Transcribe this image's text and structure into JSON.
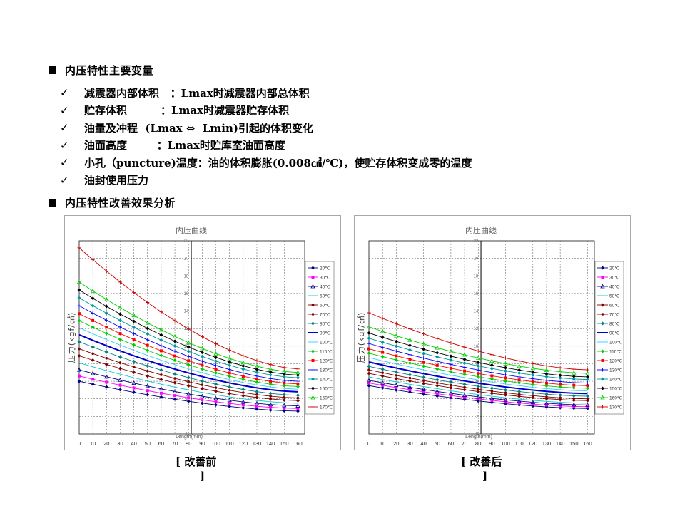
{
  "headings": {
    "main_vars": "内压特性主要变量",
    "effect_analysis": "内压特性改善效果分析"
  },
  "bullets": [
    "减震器内部体积   ：Lmax时减震器内部总体积",
    "贮存体积         ：Lmax时减震器贮存体积",
    "油量及冲程  (Lmax ⇔  Lmin)引起的体积变化",
    "油面高度        ：Lmax时贮库室油面高度",
    "小孔（puncture)温度：油的体积膨胀(0.008㎤/℃)，使贮存体积变成零的温度",
    "油封使用压力"
  ],
  "check_symbol": "✓",
  "captions": {
    "before_line1": "[ 改善前",
    "before_line2": "]",
    "after_line1": "[ 改善后",
    "after_line2": "]"
  },
  "chart_data": [
    {
      "type": "line",
      "title": "内压曲线",
      "xlabel": "Length(mm)",
      "ylabel": "压力(kgf/㎠)",
      "x": [
        0,
        10,
        20,
        30,
        40,
        50,
        60,
        70,
        80,
        90,
        100,
        110,
        120,
        130,
        140,
        150,
        160
      ],
      "xlim": [
        0,
        165
      ],
      "ylim": [
        0,
        22
      ],
      "yticks": [
        0,
        2,
        4,
        6,
        8,
        10,
        12,
        14,
        16,
        18,
        20,
        22
      ],
      "legend_position": "right",
      "grid": true,
      "series": [
        {
          "name": "20℃",
          "color": "#000080",
          "start": 6.0,
          "end": 2.6
        },
        {
          "name": "30℃",
          "color": "#ff00ff",
          "start": 6.6,
          "end": 2.9
        },
        {
          "name": "40℃",
          "color": "#000080",
          "start": 7.3,
          "end": 3.2
        },
        {
          "name": "50℃",
          "color": "#00cccc",
          "start": 8.1,
          "end": 3.5
        },
        {
          "name": "60℃",
          "color": "#800000",
          "start": 8.9,
          "end": 3.8
        },
        {
          "name": "70℃",
          "color": "#800000",
          "start": 9.7,
          "end": 4.1
        },
        {
          "name": "80℃",
          "color": "#008080",
          "start": 10.5,
          "end": 4.4
        },
        {
          "name": "90℃",
          "color": "#0000cc",
          "start": 11.3,
          "end": 4.8
        },
        {
          "name": "100℃",
          "color": "#33ccff",
          "start": 12.1,
          "end": 5.1
        },
        {
          "name": "110℃",
          "color": "#00cc00",
          "start": 12.9,
          "end": 5.4
        },
        {
          "name": "120℃",
          "color": "#ff0000",
          "start": 13.7,
          "end": 5.7
        },
        {
          "name": "130℃",
          "color": "#0000ff",
          "start": 14.6,
          "end": 6.0
        },
        {
          "name": "140℃",
          "color": "#009999",
          "start": 15.5,
          "end": 6.4
        },
        {
          "name": "150℃",
          "color": "#000000",
          "start": 16.4,
          "end": 6.7
        },
        {
          "name": "160℃",
          "color": "#00cc00",
          "start": 17.3,
          "end": 7.0
        },
        {
          "name": "170℃",
          "color": "#cc0000",
          "start": 21.2,
          "end": 7.4
        }
      ]
    },
    {
      "type": "line",
      "title": "内压曲线",
      "xlabel": "Length(mm)",
      "ylabel": "压力(kgf/㎠)",
      "x": [
        0,
        10,
        20,
        30,
        40,
        50,
        60,
        70,
        80,
        90,
        100,
        110,
        120,
        130,
        140,
        150,
        160
      ],
      "xlim": [
        0,
        165
      ],
      "ylim": [
        0,
        22
      ],
      "yticks": [
        0,
        2,
        4,
        6,
        8,
        10,
        12,
        14,
        16,
        18,
        20,
        22
      ],
      "legend_position": "right",
      "grid": true,
      "series": [
        {
          "name": "20℃",
          "color": "#000080",
          "start": 5.5,
          "end": 2.9
        },
        {
          "name": "30℃",
          "color": "#ff00ff",
          "start": 5.8,
          "end": 3.1
        },
        {
          "name": "40℃",
          "color": "#000080",
          "start": 6.1,
          "end": 3.3
        },
        {
          "name": "50℃",
          "color": "#00cccc",
          "start": 6.5,
          "end": 3.5
        },
        {
          "name": "60℃",
          "color": "#800000",
          "start": 6.9,
          "end": 3.8
        },
        {
          "name": "70℃",
          "color": "#800000",
          "start": 7.3,
          "end": 4.0
        },
        {
          "name": "80℃",
          "color": "#008080",
          "start": 7.7,
          "end": 4.3
        },
        {
          "name": "90℃",
          "color": "#0000cc",
          "start": 8.2,
          "end": 4.6
        },
        {
          "name": "100℃",
          "color": "#33ccff",
          "start": 8.7,
          "end": 4.9
        },
        {
          "name": "110℃",
          "color": "#00cc00",
          "start": 9.2,
          "end": 5.2
        },
        {
          "name": "120℃",
          "color": "#ff0000",
          "start": 9.7,
          "end": 5.5
        },
        {
          "name": "130℃",
          "color": "#0000ff",
          "start": 10.3,
          "end": 5.8
        },
        {
          "name": "140℃",
          "color": "#009999",
          "start": 10.9,
          "end": 6.2
        },
        {
          "name": "150℃",
          "color": "#000000",
          "start": 11.5,
          "end": 6.5
        },
        {
          "name": "160℃",
          "color": "#00cc00",
          "start": 12.2,
          "end": 6.9
        },
        {
          "name": "170℃",
          "color": "#cc0000",
          "start": 13.8,
          "end": 7.3
        }
      ]
    }
  ]
}
